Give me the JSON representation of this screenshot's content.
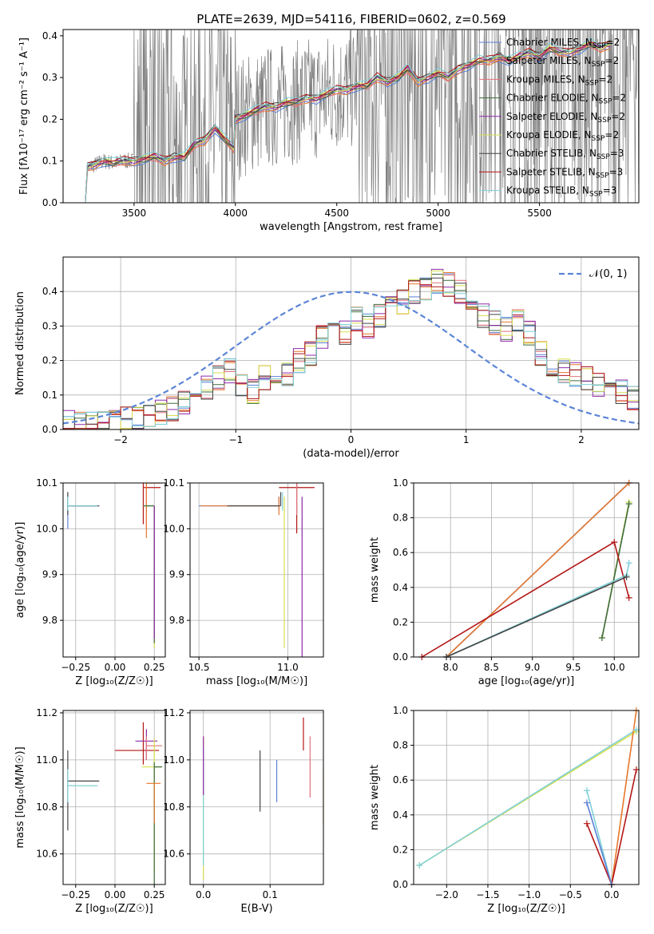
{
  "figure": {
    "title": "PLATE=2639, MJD=54116, FIBERID=0602, z=0.569"
  },
  "chart_data": [
    {
      "type": "line",
      "panel": "spectrum",
      "xlabel": "wavelength [Angstrom, rest frame]",
      "ylabel": "Flux [f$_\\lambda$ 10$^{-17}$ erg cm$^{-2}$ s$^{-1}$ A$^{-1}$]",
      "ylabel_display": "Flux [fλ10⁻¹⁷ erg cm⁻² s⁻¹ A⁻¹]",
      "xlim": [
        3150,
        5990
      ],
      "ylim": [
        0,
        0.415
      ],
      "xticks": [
        3500,
        4000,
        4500,
        5000,
        5500
      ],
      "yticks": [
        0.0,
        0.1,
        0.2,
        0.3,
        0.4
      ],
      "grid": false,
      "legend_position": "top-right",
      "series": [
        {
          "name": "Chabrier MILES, N_SSP=2",
          "label_main": "Chabrier MILES, N",
          "label_sub": "SSP",
          "label_tail": "=2",
          "color": "#5b7fd6"
        },
        {
          "name": "Salpeter MILES, N_SSP=2",
          "label_main": "Salpeter MILES, N",
          "label_sub": "SSP",
          "label_tail": "=2",
          "color": "#e6772e"
        },
        {
          "name": "Kroupa MILES, N_SSP=2",
          "label_main": "Kroupa MILES, N",
          "label_sub": "SSP",
          "label_tail": "=2",
          "color": "#e0707c"
        },
        {
          "name": "Chabrier ELODIE, N_SSP=2",
          "label_main": "Chabrier ELODIE, N",
          "label_sub": "SSP",
          "label_tail": "=2",
          "color": "#3d6b3d"
        },
        {
          "name": "Salpeter ELODIE, N_SSP=2",
          "label_main": "Salpeter ELODIE, N",
          "label_sub": "SSP",
          "label_tail": "=2",
          "color": "#8e2aa8"
        },
        {
          "name": "Kroupa ELODIE, N_SSP=2",
          "label_main": "Kroupa ELODIE, N",
          "label_sub": "SSP",
          "label_tail": "=2",
          "color": "#d6e050"
        },
        {
          "name": "Chabrier STELIB, N_SSP=3",
          "label_main": "Chabrier STELIB, N",
          "label_sub": "SSP",
          "label_tail": "=3",
          "color": "#444444"
        },
        {
          "name": "Salpeter STELIB, N_SSP=3",
          "label_main": "Salpeter STELIB, N",
          "label_sub": "SSP",
          "label_tail": "=3",
          "color": "#b41616"
        },
        {
          "name": "Kroupa STELIB, N_SSP=3",
          "label_main": "Kroupa STELIB, N",
          "label_sub": "SSP",
          "label_tail": "=3",
          "color": "#7fd0d8"
        }
      ],
      "data_color": "#808080",
      "model_x": [
        3260,
        3270,
        3300,
        3350,
        3400,
        3450,
        3500,
        3550,
        3600,
        3650,
        3700,
        3750,
        3800,
        3850,
        3900,
        3950,
        3990,
        4000,
        4050,
        4100,
        4150,
        4200,
        4250,
        4300,
        4350,
        4400,
        4450,
        4500,
        4550,
        4600,
        4650,
        4700,
        4750,
        4800,
        4850,
        4900,
        4950,
        5000,
        5050,
        5100,
        5150,
        5200,
        5250,
        5300,
        5350,
        5400,
        5450,
        5500,
        5550,
        5600,
        5650,
        5700,
        5750,
        5800,
        5850
      ],
      "model_y": [
        0.0,
        0.085,
        0.09,
        0.1,
        0.095,
        0.1,
        0.1,
        0.105,
        0.11,
        0.1,
        0.11,
        0.11,
        0.14,
        0.15,
        0.18,
        0.15,
        0.13,
        0.2,
        0.21,
        0.22,
        0.23,
        0.23,
        0.24,
        0.24,
        0.25,
        0.25,
        0.26,
        0.27,
        0.27,
        0.28,
        0.28,
        0.3,
        0.29,
        0.3,
        0.32,
        0.29,
        0.3,
        0.31,
        0.3,
        0.32,
        0.33,
        0.34,
        0.34,
        0.35,
        0.34,
        0.35,
        0.36,
        0.35,
        0.37,
        0.36,
        0.36,
        0.37,
        0.38,
        0.37,
        0.38
      ]
    },
    {
      "type": "bar",
      "panel": "residual-histogram",
      "xlabel": "(data-model)/error",
      "ylabel": "Normed distribution",
      "xlim": [
        -2.5,
        2.5
      ],
      "ylim": [
        0,
        0.5
      ],
      "xticks": [
        -2,
        -1,
        0,
        1,
        2
      ],
      "yticks": [
        0.0,
        0.1,
        0.2,
        0.3,
        0.4
      ],
      "grid": true,
      "legend_position": "top-right",
      "legend_label": "𝒩(0, 1)",
      "reference_curve": {
        "name": "N(0,1)",
        "mean": 0,
        "sigma": 1,
        "color": "#5b85d6"
      },
      "bin_width": 0.1,
      "bin_start": -2.5,
      "profile": [
        0.02,
        0.015,
        0.015,
        0.02,
        0.02,
        0.03,
        0.03,
        0.04,
        0.05,
        0.06,
        0.08,
        0.1,
        0.12,
        0.15,
        0.17,
        0.13,
        0.11,
        0.15,
        0.17,
        0.16,
        0.2,
        0.22,
        0.27,
        0.3,
        0.28,
        0.32,
        0.3,
        0.33,
        0.35,
        0.37,
        0.4,
        0.41,
        0.43,
        0.42,
        0.4,
        0.36,
        0.33,
        0.31,
        0.29,
        0.32,
        0.28,
        0.22,
        0.19,
        0.17,
        0.16,
        0.15,
        0.13,
        0.12,
        0.11,
        0.09,
        0.09
      ],
      "series_colors": [
        "#5b7fd6",
        "#e6772e",
        "#e0707c",
        "#3d6b3d",
        "#8e2aa8",
        "#d6e050",
        "#444444",
        "#b41616",
        "#7fd0d8"
      ]
    },
    {
      "type": "scatter",
      "panel": "age-vs-Z",
      "xlabel": "Z [log₁₀(Z/Z☉)]",
      "ylabel": "age  [log₁₀(age/yr)]",
      "xlim": [
        -0.33,
        0.32
      ],
      "ylim": [
        9.72,
        10.1
      ],
      "xticks": [
        -0.25,
        0.0,
        0.25
      ],
      "yticks": [
        9.8,
        9.9,
        10.0,
        10.1
      ],
      "grid": true,
      "error_crosses": [
        {
          "x": -0.3,
          "y": 10.05,
          "xerr": [
            0.0,
            0.2
          ],
          "yerr": [
            0.05,
            0.03
          ],
          "color": "#5b7fd6"
        },
        {
          "x": -0.3,
          "y": 10.05,
          "xerr": [
            0.0,
            0.2
          ],
          "yerr": [
            0.02,
            0.03
          ],
          "color": "#444444"
        },
        {
          "x": -0.3,
          "y": 10.05,
          "xerr": [
            0.0,
            0.19
          ],
          "yerr": [
            0.01,
            0.02
          ],
          "color": "#7fd0d8"
        },
        {
          "x": 0.18,
          "y": 10.09,
          "xerr": [
            0.0,
            0.11
          ],
          "yerr": [
            0.08,
            0.02
          ],
          "color": "#b41616"
        },
        {
          "x": 0.2,
          "y": 10.1,
          "xerr": [
            0.0,
            0.1
          ],
          "yerr": [
            0.1,
            0.01
          ],
          "color": "#e0707c"
        },
        {
          "x": 0.2,
          "y": 10.1,
          "xerr": [
            0.0,
            0.09
          ],
          "yerr": [
            0.12,
            0.0
          ],
          "color": "#e6772e"
        },
        {
          "x": 0.25,
          "y": 10.05,
          "xerr": [
            0.07,
            0.0
          ],
          "yerr": [
            0.31,
            0.0
          ],
          "color": "#d6e050"
        },
        {
          "x": 0.25,
          "y": 10.05,
          "xerr": [
            0.07,
            0.0
          ],
          "yerr": [
            0.3,
            0.0
          ],
          "color": "#3d6b3d"
        },
        {
          "x": 0.25,
          "y": 10.05,
          "xerr": [
            0.0,
            0.0
          ],
          "yerr": [
            0.29,
            0.0
          ],
          "color": "#8e2aa8"
        }
      ]
    },
    {
      "type": "scatter",
      "panel": "age-vs-mass",
      "xlabel": "mass [log₁₀(M/M☉)]",
      "ylabel": "",
      "xlim": [
        10.45,
        11.2
      ],
      "ylim": [
        9.72,
        10.1
      ],
      "xticks": [
        10.5,
        11.0
      ],
      "yticks": [
        9.8,
        9.9,
        10.0,
        10.1
      ],
      "grid": true,
      "error_crosses": [
        {
          "x": 10.95,
          "y": 10.05,
          "xerr": [
            0.45,
            0.0
          ],
          "yerr": [
            0.01,
            0.02
          ],
          "color": "#5b7fd6"
        },
        {
          "x": 10.95,
          "y": 10.05,
          "xerr": [
            0.44,
            0.0
          ],
          "yerr": [
            0.02,
            0.02
          ],
          "color": "#e6772e"
        },
        {
          "x": 10.96,
          "y": 10.05,
          "xerr": [
            0.3,
            0.0
          ],
          "yerr": [
            0.0,
            0.03
          ],
          "color": "#444444"
        },
        {
          "x": 11.05,
          "y": 10.09,
          "xerr": [
            0.1,
            0.1
          ],
          "yerr": [
            0.1,
            0.03
          ],
          "color": "#b41616"
        },
        {
          "x": 11.05,
          "y": 10.08,
          "xerr": [
            0.0,
            0.0
          ],
          "yerr": [
            0.05,
            0.02
          ],
          "color": "#e0707c"
        },
        {
          "x": 11.08,
          "y": 10.05,
          "xerr": [
            0.0,
            0.0
          ],
          "yerr": [
            0.35,
            0.02
          ],
          "color": "#8e2aa8"
        },
        {
          "x": 10.98,
          "y": 10.05,
          "xerr": [
            0.0,
            0.0
          ],
          "yerr": [
            0.31,
            0.02
          ],
          "color": "#d6e050"
        },
        {
          "x": 10.97,
          "y": 10.05,
          "xerr": [
            0.0,
            0.0
          ],
          "yerr": [
            0.01,
            0.03
          ],
          "color": "#7fd0d8"
        }
      ]
    },
    {
      "type": "line",
      "panel": "massweight-vs-age",
      "xlabel": "age  [log₁₀(age/yr)]",
      "ylabel": "mass weight",
      "xlim": [
        7.55,
        10.3
      ],
      "ylim": [
        0,
        1.0
      ],
      "xticks": [
        8.0,
        8.5,
        9.0,
        9.5,
        10.0
      ],
      "yticks": [
        0.0,
        0.2,
        0.4,
        0.6,
        0.8,
        1.0
      ],
      "grid": true,
      "series": [
        {
          "name": "Chabrier MILES",
          "color": "#5b7fd6",
          "x": [
            7.95,
            10.18
          ],
          "y": [
            0.0,
            1.0
          ]
        },
        {
          "name": "Salpeter MILES",
          "color": "#e6772e",
          "x": [
            7.95,
            10.18
          ],
          "y": [
            0.0,
            1.0
          ]
        },
        {
          "name": "Kroupa ELODIE",
          "color": "#d6e050",
          "x": [
            9.85,
            10.18
          ],
          "y": [
            0.11,
            0.89
          ]
        },
        {
          "name": "Chabrier ELODIE",
          "color": "#3d6b3d",
          "x": [
            9.85,
            10.18
          ],
          "y": [
            0.11,
            0.88
          ]
        },
        {
          "name": "Salpeter STELIB",
          "color": "#b41616",
          "x": [
            7.65,
            10.0,
            10.18
          ],
          "y": [
            0.0,
            0.66,
            0.34
          ]
        },
        {
          "name": "Kroupa STELIB",
          "color": "#7fd0d8",
          "x": [
            7.95,
            10.15,
            10.18
          ],
          "y": [
            0.0,
            0.47,
            0.54
          ]
        },
        {
          "name": "Chabrier STELIB",
          "color": "#444444",
          "x": [
            7.95,
            10.15
          ],
          "y": [
            0.0,
            0.46
          ]
        }
      ]
    },
    {
      "type": "scatter",
      "panel": "mass-vs-Z",
      "xlabel": "Z [log₁₀(Z/Z☉)]",
      "ylabel": "mass [log₁₀(M/M☉)]",
      "xlim": [
        -0.33,
        0.32
      ],
      "ylim": [
        10.47,
        11.21
      ],
      "xticks": [
        -0.25,
        0.0,
        0.25
      ],
      "yticks": [
        10.6,
        10.8,
        11.0,
        11.2
      ],
      "grid": true,
      "error_crosses": [
        {
          "x": -0.3,
          "y": 10.91,
          "xerr": [
            0.0,
            0.2
          ],
          "yerr": [
            0.21,
            0.13
          ],
          "color": "#444444"
        },
        {
          "x": -0.3,
          "y": 10.89,
          "xerr": [
            0.0,
            0.19
          ],
          "yerr": [
            0.07,
            0.07
          ],
          "color": "#7fd0d8"
        },
        {
          "x": 0.18,
          "y": 11.04,
          "xerr": [
            0.18,
            0.1
          ],
          "yerr": [
            0.06,
            0.12
          ],
          "color": "#b41616"
        },
        {
          "x": 0.2,
          "y": 11.08,
          "xerr": [
            0.07,
            0.07
          ],
          "yerr": [
            0.08,
            0.05
          ],
          "color": "#8e2aa8"
        },
        {
          "x": 0.2,
          "y": 11.06,
          "xerr": [
            0.0,
            0.1
          ],
          "yerr": [
            0.06,
            0.04
          ],
          "color": "#e0707c"
        },
        {
          "x": 0.25,
          "y": 10.97,
          "xerr": [
            0.08,
            0.05
          ],
          "yerr": [
            0.45,
            0.12
          ],
          "color": "#d6e050"
        },
        {
          "x": 0.25,
          "y": 10.97,
          "xerr": [
            0.0,
            0.05
          ],
          "yerr": [
            0.5,
            0.02
          ],
          "color": "#3d6b3d"
        },
        {
          "x": 0.25,
          "y": 10.9,
          "xerr": [
            0.05,
            0.04
          ],
          "yerr": [
            0.17,
            0.0
          ],
          "color": "#e6772e"
        }
      ]
    },
    {
      "type": "scatter",
      "panel": "mass-vs-EBV",
      "xlabel": "E(B-V)",
      "ylabel": "",
      "xlim": [
        -0.02,
        0.18
      ],
      "ylim": [
        10.47,
        11.21
      ],
      "xticks": [
        0.0,
        0.1
      ],
      "yticks": [
        10.6,
        10.8,
        11.0,
        11.2
      ],
      "grid": true,
      "error_bars": [
        {
          "x": 0.0,
          "y": 10.85,
          "yerr": [
            0.36,
            0.25
          ],
          "color": "#d6e050"
        },
        {
          "x": 0.0,
          "y": 10.85,
          "yerr": [
            0.3,
            0.2
          ],
          "color": "#7fd0d8"
        },
        {
          "x": 0.0,
          "y": 10.85,
          "yerr": [
            0.0,
            0.25
          ],
          "color": "#8e2aa8"
        },
        {
          "x": 0.085,
          "y": 10.91,
          "yerr": [
            0.13,
            0.13
          ],
          "color": "#444444"
        },
        {
          "x": 0.11,
          "y": 10.92,
          "yerr": [
            0.1,
            0.08
          ],
          "color": "#5b7fd6"
        },
        {
          "x": 0.15,
          "y": 11.1,
          "yerr": [
            0.06,
            0.08
          ],
          "color": "#b41616"
        },
        {
          "x": 0.16,
          "y": 10.97,
          "yerr": [
            0.13,
            0.13
          ],
          "color": "#e0707c"
        },
        {
          "x": 0.18,
          "y": 10.9,
          "yerr": [
            0.17,
            0.06
          ],
          "color": "#e6772e"
        }
      ]
    },
    {
      "type": "line",
      "panel": "massweight-vs-Z",
      "xlabel": "Z [log₁₀(Z/Z☉)]",
      "ylabel": "mass weight",
      "xlim": [
        -2.4,
        0.33
      ],
      "ylim": [
        0,
        1.0
      ],
      "xticks": [
        -2.0,
        -1.5,
        -1.0,
        -0.5,
        0.0
      ],
      "yticks": [
        0.0,
        0.2,
        0.4,
        0.6,
        0.8,
        1.0
      ],
      "grid": true,
      "series": [
        {
          "name": "Kroupa ELODIE",
          "color": "#d6e050",
          "x": [
            -2.33,
            0.3
          ],
          "y": [
            0.11,
            0.88
          ]
        },
        {
          "name": "Chabrier ELODIE",
          "color": "#7fd0d8",
          "x": [
            -2.33,
            0.3
          ],
          "y": [
            0.11,
            0.89
          ]
        },
        {
          "name": "Salpeter MILES",
          "color": "#e6772e",
          "x": [
            0.0,
            0.3
          ],
          "y": [
            0.0,
            1.0
          ]
        },
        {
          "name": "Salpeter STELIB",
          "color": "#b41616",
          "x": [
            -0.3,
            0.0,
            0.3
          ],
          "y": [
            0.35,
            0.0,
            0.66
          ]
        },
        {
          "name": "Kroupa STELIB",
          "color": "#7fd0d8",
          "x": [
            -0.3,
            0.0
          ],
          "y": [
            0.54,
            0.0
          ]
        },
        {
          "name": "Chabrier STELIB",
          "color": "#5b7fd6",
          "x": [
            -0.3,
            0.0
          ],
          "y": [
            0.47,
            0.0
          ]
        }
      ]
    }
  ]
}
